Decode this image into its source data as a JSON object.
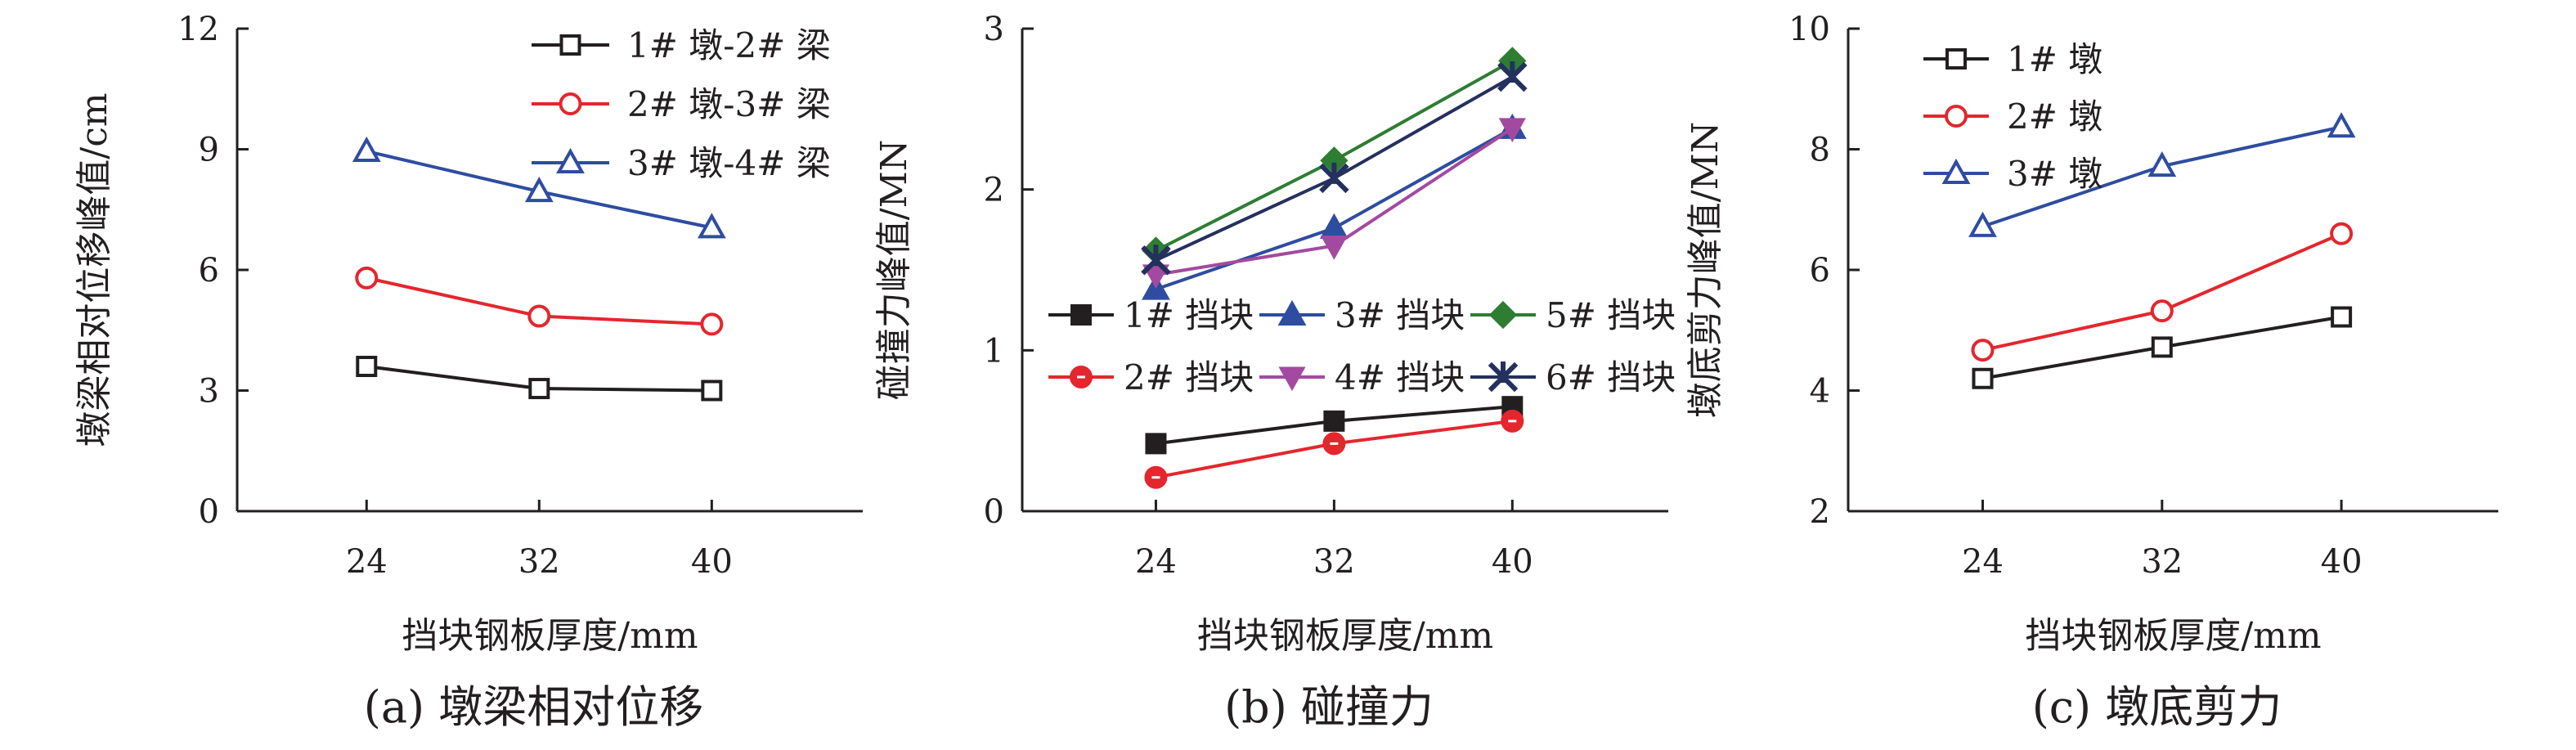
{
  "chart_data": [
    {
      "type": "line",
      "panel": "a",
      "title": "(a) 墩梁相对位移",
      "xlabel": "挡块钢板厚度/mm",
      "ylabel": "墩梁相对位移峰值/cm",
      "x": [
        24,
        32,
        40
      ],
      "xticks": [
        "24",
        "32",
        "40"
      ],
      "ylim": [
        0,
        12
      ],
      "yticks": [
        "0",
        "3",
        "6",
        "9",
        "12"
      ],
      "legend_position": "top-right",
      "series": [
        {
          "name": "1# 墩-2# 梁",
          "values": [
            3.6,
            3.05,
            3.0
          ],
          "color": "#231f20",
          "marker": "square-open"
        },
        {
          "name": "2# 墩-3# 梁",
          "values": [
            5.8,
            4.85,
            4.65
          ],
          "color": "#e4262d",
          "marker": "circle-open"
        },
        {
          "name": "3# 墩-4# 梁",
          "values": [
            8.95,
            7.95,
            7.05
          ],
          "color": "#2e4da0",
          "marker": "triangle-open"
        }
      ]
    },
    {
      "type": "line",
      "panel": "b",
      "title": "(b) 碰撞力",
      "xlabel": "挡块钢板厚度/mm",
      "ylabel": "碰撞力峰值/MN",
      "x": [
        24,
        32,
        40
      ],
      "xticks": [
        "24",
        "32",
        "40"
      ],
      "ylim": [
        0,
        3
      ],
      "yticks": [
        "0",
        "1",
        "2",
        "3"
      ],
      "legend_position": "center-right",
      "series": [
        {
          "name": "1# 挡块",
          "values": [
            0.42,
            0.56,
            0.65
          ],
          "color": "#231f20",
          "marker": "square-filled"
        },
        {
          "name": "2# 挡块",
          "values": [
            0.21,
            0.42,
            0.56
          ],
          "color": "#e4262d",
          "marker": "circle-filled"
        },
        {
          "name": "3# 挡块",
          "values": [
            1.38,
            1.76,
            2.38
          ],
          "color": "#2e4da0",
          "marker": "triangle-filled"
        },
        {
          "name": "4# 挡块",
          "values": [
            1.47,
            1.65,
            2.38
          ],
          "color": "#a34aa0",
          "marker": "triangle-down-filled"
        },
        {
          "name": "5# 挡块",
          "values": [
            1.62,
            2.18,
            2.8
          ],
          "color": "#2e7d32",
          "marker": "diamond-filled"
        },
        {
          "name": "6# 挡块",
          "values": [
            1.56,
            2.07,
            2.7
          ],
          "color": "#24305e",
          "marker": "star"
        }
      ]
    },
    {
      "type": "line",
      "panel": "c",
      "title": "(c) 墩底剪力",
      "xlabel": "挡块钢板厚度/mm",
      "ylabel": "墩底剪力峰值/MN",
      "x": [
        24,
        32,
        40
      ],
      "xticks": [
        "24",
        "32",
        "40"
      ],
      "ylim": [
        2,
        10
      ],
      "yticks": [
        "2",
        "4",
        "6",
        "8",
        "10"
      ],
      "legend_position": "top-left",
      "series": [
        {
          "name": "1# 墩",
          "values": [
            4.2,
            4.72,
            5.22
          ],
          "color": "#231f20",
          "marker": "square-open"
        },
        {
          "name": "2# 墩",
          "values": [
            4.67,
            5.32,
            6.6
          ],
          "color": "#e4262d",
          "marker": "circle-open"
        },
        {
          "name": "3# 墩",
          "values": [
            6.72,
            7.72,
            8.37
          ],
          "color": "#2e4da0",
          "marker": "triangle-open"
        }
      ]
    }
  ]
}
